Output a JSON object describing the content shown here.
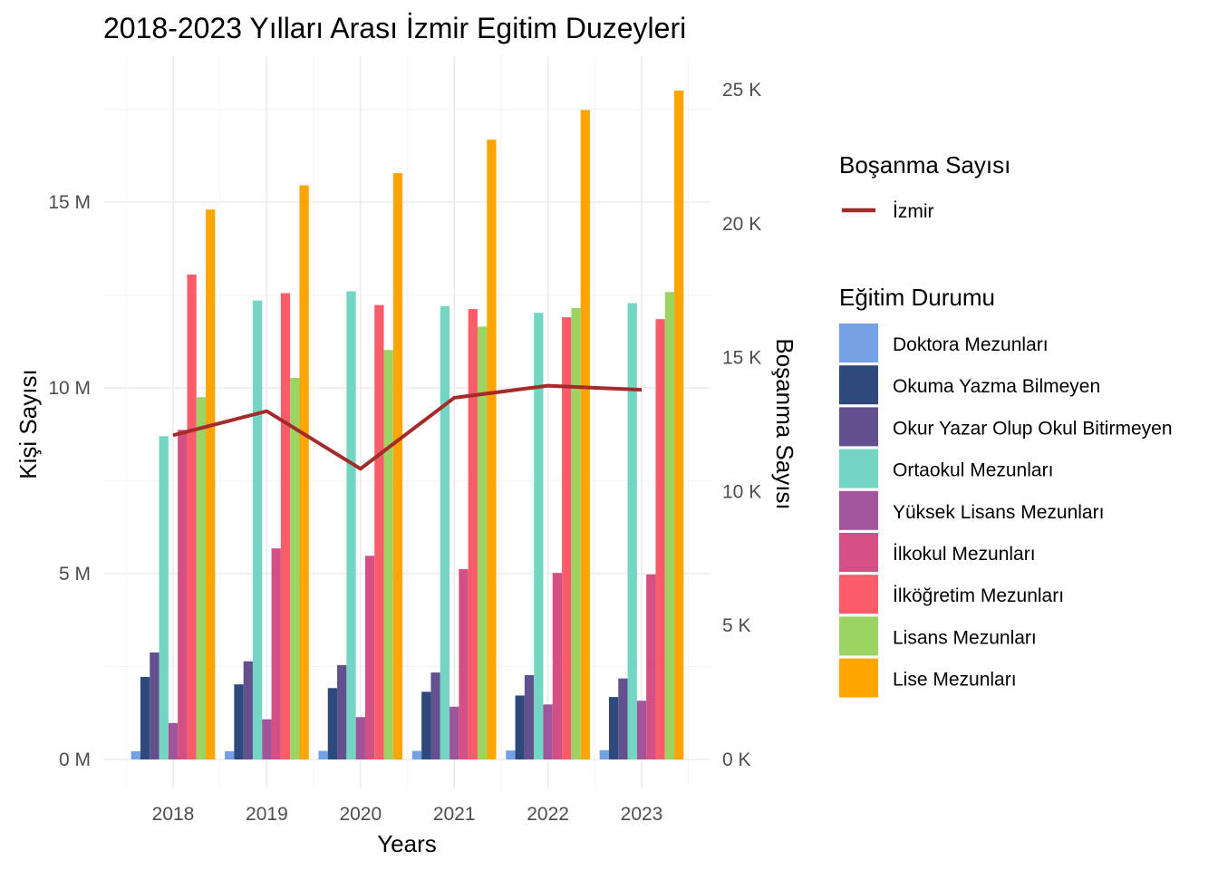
{
  "chart_data": {
    "type": "bar",
    "title": "2018-2023 Yılları Arası İzmir Egitim Duzeyleri",
    "xlabel": "Years",
    "ylabel": "Kişi Sayısı",
    "y2label": "Boşanma Sayısı",
    "categories": [
      "2018",
      "2019",
      "2020",
      "2021",
      "2022",
      "2023"
    ],
    "ylim": [
      0,
      18
    ],
    "yticks": [
      {
        "value": 0,
        "label": "0 M"
      },
      {
        "value": 5,
        "label": "5 M"
      },
      {
        "value": 10,
        "label": "10 M"
      },
      {
        "value": 15,
        "label": "15 M"
      }
    ],
    "y2lim": [
      0,
      25000
    ],
    "y2ticks": [
      {
        "value": 0,
        "label": "0 K"
      },
      {
        "value": 5000,
        "label": "5 K"
      },
      {
        "value": 10000,
        "label": "10 K"
      },
      {
        "value": 15000,
        "label": "15 K"
      },
      {
        "value": 20000,
        "label": "20 K"
      },
      {
        "value": 25000,
        "label": "25 K"
      }
    ],
    "grid": true,
    "legend_position": "right",
    "bar_legend_title": "Eğitim Durumu",
    "series": [
      {
        "name": "Doktora Mezunları",
        "color": "#74A0E4",
        "values": [
          0.22,
          0.22,
          0.23,
          0.23,
          0.24,
          0.25
        ]
      },
      {
        "name": "Okuma Yazma Bilmeyen",
        "color": "#2E4A7C",
        "values": [
          2.22,
          2.02,
          1.92,
          1.82,
          1.72,
          1.68
        ]
      },
      {
        "name": "Okur Yazar Olup Okul Bitirmeyen",
        "color": "#63508F",
        "values": [
          2.88,
          2.64,
          2.54,
          2.34,
          2.27,
          2.18
        ]
      },
      {
        "name": "Ortaokul Mezunları",
        "color": "#72D6C3",
        "values": [
          8.7,
          12.35,
          12.6,
          12.2,
          12.02,
          12.28
        ]
      },
      {
        "name": "Yüksek Lisans Mezunları",
        "color": "#A0559A",
        "values": [
          0.98,
          1.08,
          1.14,
          1.42,
          1.48,
          1.58
        ]
      },
      {
        "name": "İlkokul Mezunları",
        "color": "#D44F84",
        "values": [
          8.87,
          5.68,
          5.48,
          5.12,
          5.02,
          4.98
        ]
      },
      {
        "name": "İlköğretim Mezunları",
        "color": "#FB5C6A",
        "values": [
          13.05,
          12.55,
          12.23,
          12.12,
          11.9,
          11.85
        ]
      },
      {
        "name": "Lisans Mezunları",
        "color": "#9CD464",
        "values": [
          9.75,
          10.27,
          11.02,
          11.65,
          12.15,
          12.58
        ]
      },
      {
        "name": "Lise Mezunları",
        "color": "#FEA500",
        "values": [
          14.8,
          15.45,
          15.78,
          16.68,
          17.48,
          18.0
        ]
      }
    ],
    "line_series": {
      "legend_title": "Boşanma Sayısı",
      "name": "İzmir",
      "color": "#A52A2A",
      "axis": "y2",
      "values": [
        12100,
        13000,
        10850,
        13500,
        13950,
        13800
      ]
    }
  }
}
